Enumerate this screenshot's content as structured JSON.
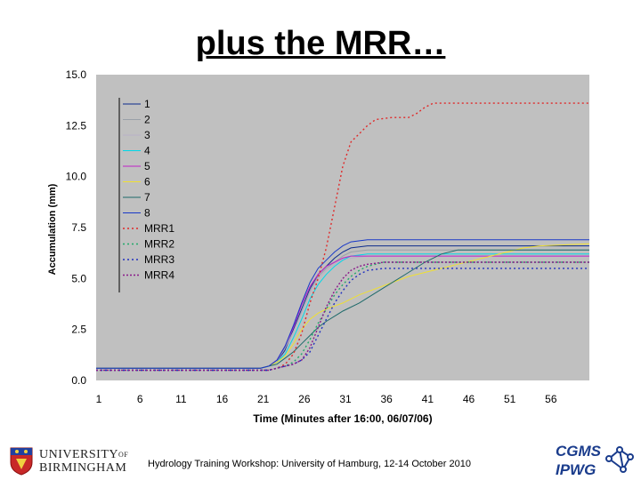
{
  "slide": {
    "title": "plus the MRR…",
    "footer": "Hydrology Training Workshop: University of Hamburg, 12-14 October 2010",
    "logos": {
      "university_line1": "UNIVERSITY",
      "university_of": "OF",
      "university_line2": "BIRMINGHAM",
      "cgms_line1": "CGMS",
      "cgms_line2": "IPWG"
    }
  },
  "chart_data": {
    "type": "line",
    "title": "",
    "xlabel": "Time (Minutes after 16:00, 06/07/06)",
    "ylabel": "Accumulation (mm)",
    "xlim": [
      0,
      60
    ],
    "ylim": [
      0,
      15
    ],
    "x_ticks": [
      1,
      6,
      11,
      16,
      21,
      26,
      31,
      36,
      41,
      46,
      51,
      56
    ],
    "y_ticks": [
      "0.0",
      "2.5",
      "5.0",
      "7.5",
      "10.0",
      "12.5",
      "15.0"
    ],
    "plot_background": "#c0c0c0",
    "grid": false,
    "legend_position": "top-left",
    "series": [
      {
        "name": "1",
        "color": "#0b2a8c",
        "dash": "solid",
        "points": [
          [
            0,
            0.6
          ],
          [
            20,
            0.6
          ],
          [
            21,
            0.7
          ],
          [
            22,
            0.9
          ],
          [
            23,
            1.5
          ],
          [
            24,
            2.5
          ],
          [
            25,
            3.5
          ],
          [
            26,
            4.5
          ],
          [
            27,
            5.2
          ],
          [
            28,
            5.6
          ],
          [
            29,
            6.0
          ],
          [
            30,
            6.3
          ],
          [
            31,
            6.5
          ],
          [
            33,
            6.6
          ],
          [
            60,
            6.6
          ]
        ]
      },
      {
        "name": "2",
        "color": "#9aa0a8",
        "dash": "solid",
        "points": [
          [
            0,
            0.6
          ],
          [
            20,
            0.6
          ],
          [
            21,
            0.7
          ],
          [
            22,
            1.0
          ],
          [
            23,
            1.6
          ],
          [
            24,
            2.4
          ],
          [
            25,
            3.4
          ],
          [
            26,
            4.4
          ],
          [
            27,
            5.1
          ],
          [
            28,
            5.5
          ],
          [
            29,
            5.8
          ],
          [
            30,
            6.1
          ],
          [
            31,
            6.3
          ],
          [
            33,
            6.4
          ],
          [
            60,
            6.4
          ]
        ]
      },
      {
        "name": "3",
        "color": "#b9b0c8",
        "dash": "solid",
        "points": [
          [
            0,
            0.6
          ],
          [
            20,
            0.6
          ],
          [
            21,
            0.7
          ],
          [
            22,
            0.9
          ],
          [
            23,
            1.4
          ],
          [
            24,
            2.4
          ],
          [
            25,
            3.3
          ],
          [
            26,
            4.3
          ],
          [
            27,
            5.0
          ],
          [
            28,
            5.4
          ],
          [
            29,
            5.7
          ],
          [
            30,
            5.9
          ],
          [
            31,
            6.0
          ],
          [
            33,
            6.1
          ],
          [
            60,
            6.1
          ]
        ]
      },
      {
        "name": "4",
        "color": "#00d8e8",
        "dash": "solid",
        "points": [
          [
            0,
            0.6
          ],
          [
            20,
            0.6
          ],
          [
            21,
            0.7
          ],
          [
            22,
            0.9
          ],
          [
            23,
            1.3
          ],
          [
            24,
            2.1
          ],
          [
            25,
            3.0
          ],
          [
            26,
            4.0
          ],
          [
            27,
            4.7
          ],
          [
            28,
            5.2
          ],
          [
            29,
            5.6
          ],
          [
            30,
            5.9
          ],
          [
            31,
            6.1
          ],
          [
            33,
            6.2
          ],
          [
            60,
            6.2
          ]
        ]
      },
      {
        "name": "5",
        "color": "#c020c8",
        "dash": "solid",
        "points": [
          [
            0,
            0.6
          ],
          [
            20,
            0.6
          ],
          [
            21,
            0.7
          ],
          [
            22,
            1.0
          ],
          [
            23,
            1.7
          ],
          [
            24,
            2.6
          ],
          [
            25,
            3.7
          ],
          [
            26,
            4.6
          ],
          [
            27,
            5.2
          ],
          [
            28,
            5.6
          ],
          [
            29,
            5.8
          ],
          [
            30,
            6.0
          ],
          [
            31,
            6.1
          ],
          [
            60,
            6.1
          ]
        ]
      },
      {
        "name": "6",
        "color": "#f0e030",
        "dash": "solid",
        "points": [
          [
            0,
            0.6
          ],
          [
            20,
            0.6
          ],
          [
            21,
            0.7
          ],
          [
            22,
            0.9
          ],
          [
            23,
            1.2
          ],
          [
            24,
            1.8
          ],
          [
            25,
            2.5
          ],
          [
            26,
            3.0
          ],
          [
            27,
            3.3
          ],
          [
            28,
            3.5
          ],
          [
            30,
            3.8
          ],
          [
            32,
            4.2
          ],
          [
            34,
            4.5
          ],
          [
            36,
            4.8
          ],
          [
            38,
            5.1
          ],
          [
            40,
            5.3
          ],
          [
            42,
            5.5
          ],
          [
            44,
            5.7
          ],
          [
            46,
            5.9
          ],
          [
            48,
            6.1
          ],
          [
            50,
            6.3
          ],
          [
            52,
            6.5
          ],
          [
            54,
            6.6
          ],
          [
            60,
            6.7
          ]
        ]
      },
      {
        "name": "7",
        "color": "#1e6a6a",
        "dash": "solid",
        "points": [
          [
            0,
            0.6
          ],
          [
            20,
            0.6
          ],
          [
            21,
            0.7
          ],
          [
            22,
            0.8
          ],
          [
            23,
            1.1
          ],
          [
            24,
            1.4
          ],
          [
            25,
            1.8
          ],
          [
            26,
            2.2
          ],
          [
            27,
            2.6
          ],
          [
            28,
            2.9
          ],
          [
            30,
            3.4
          ],
          [
            32,
            3.8
          ],
          [
            34,
            4.3
          ],
          [
            36,
            4.8
          ],
          [
            38,
            5.3
          ],
          [
            40,
            5.8
          ],
          [
            42,
            6.2
          ],
          [
            44,
            6.4
          ],
          [
            60,
            6.4
          ]
        ]
      },
      {
        "name": "8",
        "color": "#1838c8",
        "dash": "solid",
        "points": [
          [
            0,
            0.6
          ],
          [
            20,
            0.6
          ],
          [
            21,
            0.7
          ],
          [
            22,
            1.0
          ],
          [
            23,
            1.7
          ],
          [
            24,
            2.7
          ],
          [
            25,
            3.8
          ],
          [
            26,
            4.8
          ],
          [
            27,
            5.5
          ],
          [
            28,
            5.9
          ],
          [
            29,
            6.3
          ],
          [
            30,
            6.6
          ],
          [
            31,
            6.8
          ],
          [
            33,
            6.9
          ],
          [
            60,
            6.9
          ]
        ]
      },
      {
        "name": "MRR1",
        "color": "#e02828",
        "dash": "2,3",
        "points": [
          [
            0,
            0.5
          ],
          [
            20,
            0.5
          ],
          [
            21,
            0.5
          ],
          [
            22,
            0.6
          ],
          [
            23,
            0.8
          ],
          [
            24,
            1.3
          ],
          [
            25,
            2.3
          ],
          [
            26,
            3.8
          ],
          [
            27,
            5.0
          ],
          [
            28,
            6.5
          ],
          [
            29,
            8.5
          ],
          [
            30,
            10.5
          ],
          [
            31,
            11.7
          ],
          [
            32,
            12.1
          ],
          [
            33,
            12.5
          ],
          [
            34,
            12.8
          ],
          [
            36,
            12.9
          ],
          [
            38,
            12.9
          ],
          [
            39,
            13.1
          ],
          [
            40,
            13.4
          ],
          [
            41,
            13.6
          ],
          [
            60,
            13.6
          ]
        ]
      },
      {
        "name": "MRR2",
        "color": "#20a868",
        "dash": "2,3",
        "points": [
          [
            0,
            0.5
          ],
          [
            21,
            0.5
          ],
          [
            22,
            0.6
          ],
          [
            23,
            0.7
          ],
          [
            24,
            0.9
          ],
          [
            25,
            1.3
          ],
          [
            26,
            2.0
          ],
          [
            27,
            2.8
          ],
          [
            28,
            3.5
          ],
          [
            29,
            4.2
          ],
          [
            30,
            4.7
          ],
          [
            31,
            5.1
          ],
          [
            32,
            5.4
          ],
          [
            33,
            5.6
          ],
          [
            34,
            5.7
          ],
          [
            35,
            5.8
          ],
          [
            60,
            5.8
          ]
        ]
      },
      {
        "name": "MRR3",
        "color": "#2030c0",
        "dash": "2,3",
        "points": [
          [
            0,
            0.5
          ],
          [
            21,
            0.5
          ],
          [
            22,
            0.6
          ],
          [
            23,
            0.7
          ],
          [
            24,
            0.8
          ],
          [
            25,
            1.0
          ],
          [
            26,
            1.4
          ],
          [
            27,
            2.2
          ],
          [
            28,
            3.0
          ],
          [
            29,
            3.8
          ],
          [
            30,
            4.4
          ],
          [
            31,
            4.9
          ],
          [
            32,
            5.2
          ],
          [
            33,
            5.4
          ],
          [
            35,
            5.5
          ],
          [
            60,
            5.5
          ]
        ]
      },
      {
        "name": "MRR4",
        "color": "#8a1a8a",
        "dash": "2,2",
        "points": [
          [
            0,
            0.5
          ],
          [
            21,
            0.5
          ],
          [
            22,
            0.6
          ],
          [
            23,
            0.7
          ],
          [
            24,
            0.8
          ],
          [
            25,
            1.0
          ],
          [
            26,
            1.6
          ],
          [
            27,
            2.6
          ],
          [
            28,
            3.6
          ],
          [
            29,
            4.4
          ],
          [
            30,
            5.0
          ],
          [
            31,
            5.4
          ],
          [
            32,
            5.6
          ],
          [
            33,
            5.7
          ],
          [
            35,
            5.8
          ],
          [
            60,
            5.8
          ]
        ]
      }
    ]
  }
}
